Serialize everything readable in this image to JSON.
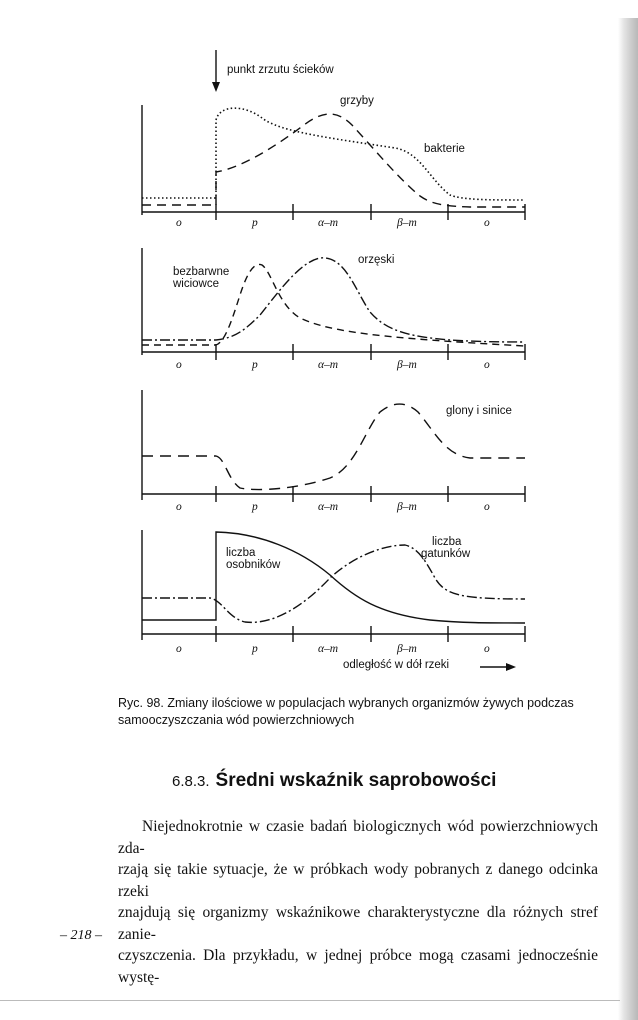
{
  "figure": {
    "arrow_label": "punkt zrzutu ścieków",
    "zone_labels": [
      "o",
      "p",
      "α–m",
      "β–m",
      "o"
    ],
    "panel1": {
      "label_a": "grzyby",
      "label_b": "bakterie"
    },
    "panel2": {
      "label_a_line1": "bezbarwne",
      "label_a_line2": "wiciowce",
      "label_b": "orzęski"
    },
    "panel3": {
      "label_a": "glony i sinice"
    },
    "panel4": {
      "label_a_line1": "liczba",
      "label_a_line2": "osobników",
      "label_b_line1": "liczba",
      "label_b_line2": "gatunków"
    },
    "axis_note": "odległość w dół rzeki"
  },
  "caption": "Ryc. 98. Zmiany ilościowe w populacjach wybranych organizmów żywych podczas samooczyszczania wód powierzchniowych",
  "section": {
    "number": "6.8.3.",
    "title": "Średni wskaźnik saprobowości"
  },
  "paragraph_lines": [
    "Niejednokrotnie w czasie badań biologicznych wód powierzchniowych zda-",
    "rzają się takie sytuacje, że w próbkach wody pobranych z danego odcinka rzeki",
    "znajdują się organizmy wskaźnikowe charakterystyczne dla różnych stref zanie-",
    "czyszczenia. Dla przykładu, w jednej próbce mogą czasami jednocześnie wystę-"
  ],
  "page_number": "– 218 –"
}
